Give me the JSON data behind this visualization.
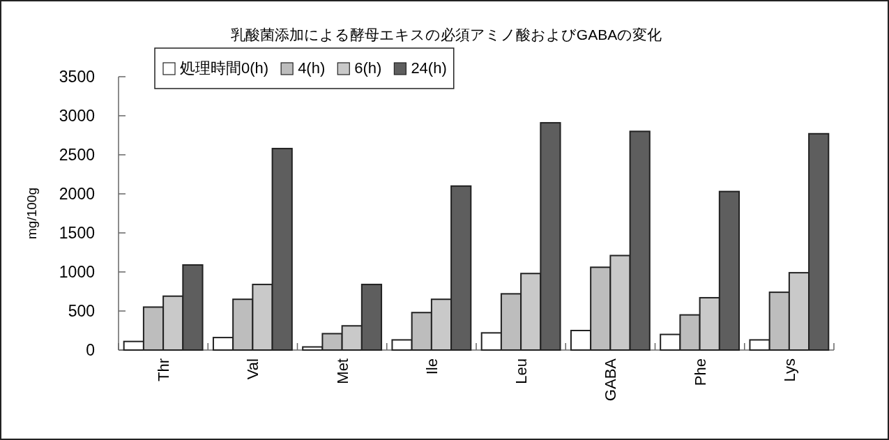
{
  "chart_data": {
    "type": "bar",
    "title": "乳酸菌添加による酵母エキスの必須アミノ酸およびGABAの変化",
    "ylabel": "mg/100g",
    "categories": [
      "Thr",
      "Val",
      "Met",
      "Ile",
      "Leu",
      "GABA",
      "Phe",
      "Lys"
    ],
    "series": [
      {
        "name": "処理時間0(h)",
        "color": "#ffffff",
        "values": [
          110,
          160,
          40,
          130,
          220,
          250,
          200,
          130
        ]
      },
      {
        "name": "4(h)",
        "color": "#bdbdbd",
        "values": [
          550,
          650,
          210,
          480,
          720,
          1060,
          450,
          740
        ]
      },
      {
        "name": "6(h)",
        "color": "#c9c9c9",
        "values": [
          690,
          840,
          310,
          650,
          980,
          1210,
          670,
          990
        ]
      },
      {
        "name": "24(h)",
        "color": "#5e5e5e",
        "values": [
          1090,
          2580,
          840,
          2100,
          2910,
          2800,
          2030,
          2770
        ]
      }
    ],
    "ylim": [
      0,
      3500
    ],
    "yticks": [
      0,
      500,
      1000,
      1500,
      2000,
      2500,
      3000,
      3500
    ],
    "legend": "top left"
  }
}
